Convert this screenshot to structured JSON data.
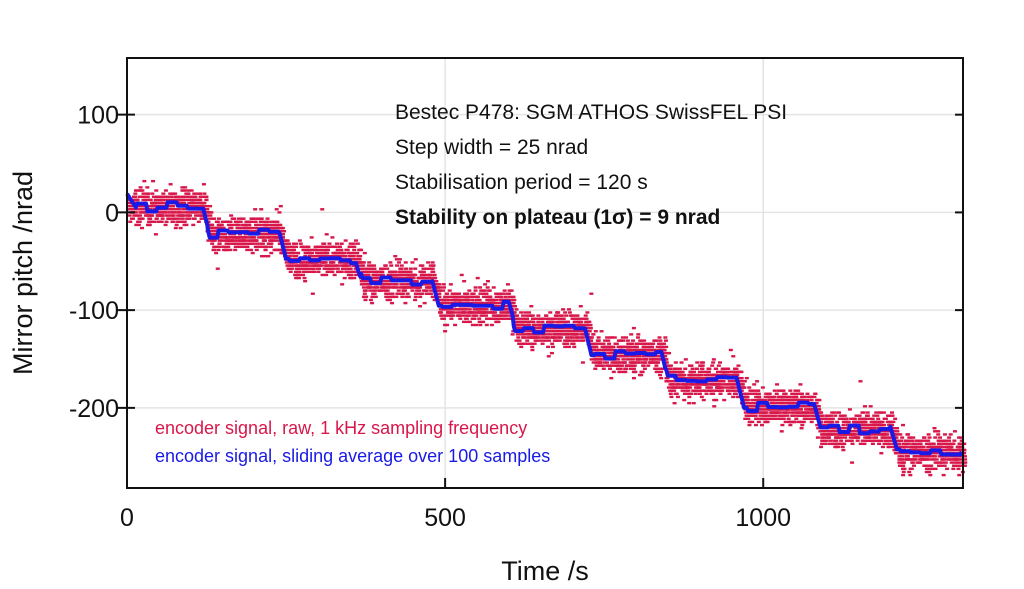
{
  "chart_data": {
    "type": "scatter",
    "xlabel": "Time /s",
    "ylabel": "Mirror pitch /nrad",
    "xlim": [
      0,
      1314
    ],
    "ylim": [
      -282,
      158
    ],
    "xticks": [
      0,
      500,
      1000
    ],
    "yticks": [
      100,
      0,
      -100,
      -200
    ],
    "grid": true,
    "annotations": [
      "Bestec P478: SGM ATHOS SwissFEL PSI",
      "Step width = 25 nrad",
      "Stabilisation period = 120 s",
      "Stability on plateau (1σ) = 9 nrad"
    ],
    "legend": {
      "placement": "bottom-left",
      "entries": [
        {
          "label": "encoder signal, raw, 1 kHz sampling frequency",
          "color": "#d8174a"
        },
        {
          "label": "encoder signal, sliding average over 100 samples",
          "color": "#1a1ae6"
        }
      ]
    },
    "series": [
      {
        "name": "encoder signal, sliding average over 100 samples",
        "plateau_start_s": [
          0,
          120,
          240,
          360,
          480,
          600,
          720,
          840,
          960,
          1080,
          1200
        ],
        "plateau_level_nrad": [
          5,
          -22,
          -48,
          -70,
          -95,
          -118,
          -145,
          -172,
          -198,
          -222,
          -245
        ]
      }
    ]
  }
}
